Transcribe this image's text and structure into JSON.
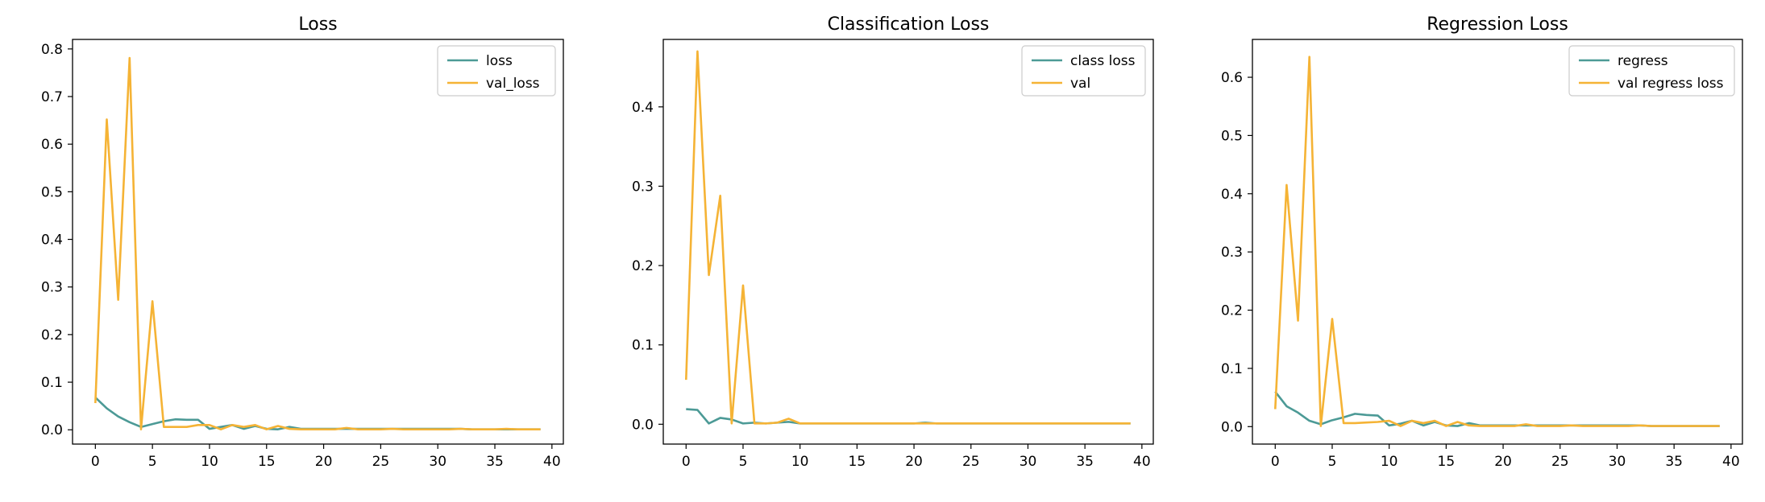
{
  "colors": {
    "train": "#4c9a96",
    "val": "#f5b335"
  },
  "chart_data": [
    {
      "type": "line",
      "title": "Loss",
      "xlabel": "",
      "ylabel": "",
      "xlim": [
        -2,
        41
      ],
      "ylim": [
        -0.03,
        0.82
      ],
      "xticks": [
        0,
        5,
        10,
        15,
        20,
        25,
        30,
        35,
        40
      ],
      "yticks": [
        0.0,
        0.1,
        0.2,
        0.3,
        0.4,
        0.5,
        0.6,
        0.7,
        0.8
      ],
      "legend_position": "top-right",
      "x": [
        0,
        1,
        2,
        3,
        4,
        5,
        6,
        7,
        8,
        9,
        10,
        11,
        12,
        13,
        14,
        15,
        16,
        17,
        18,
        19,
        20,
        21,
        22,
        23,
        24,
        25,
        26,
        27,
        28,
        29,
        30,
        31,
        32,
        33,
        34,
        35,
        36,
        37,
        38,
        39
      ],
      "series": [
        {
          "name": "loss",
          "color_key": "train",
          "values": [
            0.068,
            0.045,
            0.028,
            0.016,
            0.006,
            0.012,
            0.018,
            0.022,
            0.021,
            0.021,
            0.002,
            0.006,
            0.01,
            0.002,
            0.008,
            0.002,
            0.001,
            0.006,
            0.002,
            0.002,
            0.002,
            0.002,
            0.002,
            0.002,
            0.002,
            0.002,
            0.002,
            0.002,
            0.002,
            0.002,
            0.002,
            0.002,
            0.002,
            0.001,
            0.001,
            0.001,
            0.001,
            0.001,
            0.001,
            0.001
          ]
        },
        {
          "name": "val_loss",
          "color_key": "val",
          "values": [
            0.056,
            0.652,
            0.273,
            0.781,
            0.001,
            0.27,
            0.006,
            0.006,
            0.006,
            0.01,
            0.01,
            0.001,
            0.01,
            0.006,
            0.01,
            0.001,
            0.008,
            0.002,
            0.001,
            0.001,
            0.001,
            0.001,
            0.004,
            0.001,
            0.001,
            0.001,
            0.002,
            0.001,
            0.001,
            0.001,
            0.001,
            0.001,
            0.002,
            0.001,
            0.001,
            0.001,
            0.002,
            0.001,
            0.001,
            0.001
          ]
        }
      ]
    },
    {
      "type": "line",
      "title": "Classification Loss",
      "xlabel": "",
      "ylabel": "",
      "xlim": [
        -2,
        41
      ],
      "ylim": [
        -0.025,
        0.485
      ],
      "xticks": [
        0,
        5,
        10,
        15,
        20,
        25,
        30,
        35,
        40
      ],
      "yticks": [
        0.0,
        0.1,
        0.2,
        0.3,
        0.4
      ],
      "legend_position": "top-right",
      "x": [
        0,
        1,
        2,
        3,
        4,
        5,
        6,
        7,
        8,
        9,
        10,
        11,
        12,
        13,
        14,
        15,
        16,
        17,
        18,
        19,
        20,
        21,
        22,
        23,
        24,
        25,
        26,
        27,
        28,
        29,
        30,
        31,
        32,
        33,
        34,
        35,
        36,
        37,
        38,
        39
      ],
      "series": [
        {
          "name": "class loss",
          "color_key": "train",
          "values": [
            0.019,
            0.018,
            0.001,
            0.008,
            0.006,
            0.001,
            0.002,
            0.001,
            0.002,
            0.003,
            0.001,
            0.001,
            0.001,
            0.001,
            0.001,
            0.001,
            0.001,
            0.001,
            0.001,
            0.001,
            0.001,
            0.002,
            0.001,
            0.001,
            0.001,
            0.001,
            0.001,
            0.001,
            0.001,
            0.001,
            0.001,
            0.001,
            0.001,
            0.001,
            0.001,
            0.001,
            0.001,
            0.001,
            0.001,
            0.001
          ]
        },
        {
          "name": "val",
          "color_key": "val",
          "values": [
            0.056,
            0.47,
            0.188,
            0.288,
            0.001,
            0.175,
            0.001,
            0.001,
            0.002,
            0.007,
            0.001,
            0.001,
            0.001,
            0.001,
            0.001,
            0.001,
            0.001,
            0.001,
            0.001,
            0.001,
            0.001,
            0.001,
            0.001,
            0.001,
            0.001,
            0.001,
            0.001,
            0.001,
            0.001,
            0.001,
            0.001,
            0.001,
            0.001,
            0.001,
            0.001,
            0.001,
            0.001,
            0.001,
            0.001,
            0.001
          ]
        }
      ]
    },
    {
      "type": "line",
      "title": "Regression Loss",
      "xlabel": "",
      "ylabel": "",
      "xlim": [
        -2,
        41
      ],
      "ylim": [
        -0.03,
        0.665
      ],
      "xticks": [
        0,
        5,
        10,
        15,
        20,
        25,
        30,
        35,
        40
      ],
      "yticks": [
        0.0,
        0.1,
        0.2,
        0.3,
        0.4,
        0.5,
        0.6
      ],
      "legend_position": "top-right",
      "x": [
        0,
        1,
        2,
        3,
        4,
        5,
        6,
        7,
        8,
        9,
        10,
        11,
        12,
        13,
        14,
        15,
        16,
        17,
        18,
        19,
        20,
        21,
        22,
        23,
        24,
        25,
        26,
        27,
        28,
        29,
        30,
        31,
        32,
        33,
        34,
        35,
        36,
        37,
        38,
        39
      ],
      "series": [
        {
          "name": "regress",
          "color_key": "train",
          "values": [
            0.06,
            0.035,
            0.024,
            0.01,
            0.004,
            0.011,
            0.016,
            0.022,
            0.02,
            0.019,
            0.002,
            0.005,
            0.01,
            0.002,
            0.008,
            0.002,
            0.001,
            0.006,
            0.002,
            0.002,
            0.002,
            0.002,
            0.002,
            0.002,
            0.002,
            0.002,
            0.002,
            0.002,
            0.002,
            0.002,
            0.002,
            0.002,
            0.002,
            0.001,
            0.001,
            0.001,
            0.001,
            0.001,
            0.001,
            0.001
          ]
        },
        {
          "name": "val regress loss",
          "color_key": "val",
          "values": [
            0.03,
            0.415,
            0.182,
            0.635,
            0.001,
            0.185,
            0.006,
            0.006,
            0.007,
            0.008,
            0.01,
            0.001,
            0.01,
            0.006,
            0.01,
            0.001,
            0.008,
            0.002,
            0.001,
            0.001,
            0.001,
            0.001,
            0.004,
            0.001,
            0.001,
            0.001,
            0.002,
            0.001,
            0.001,
            0.001,
            0.001,
            0.001,
            0.002,
            0.001,
            0.001,
            0.001,
            0.001,
            0.001,
            0.001,
            0.001
          ]
        }
      ]
    }
  ]
}
